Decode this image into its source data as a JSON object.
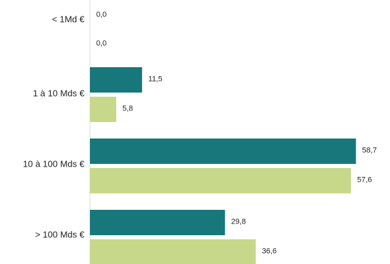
{
  "chart_data": {
    "type": "bar",
    "orientation": "horizontal",
    "title": "",
    "xlabel": "",
    "ylabel": "",
    "categories": [
      "< 1Md €",
      "1 à 10 Mds €",
      "10 à 100 Mds €",
      "> 100 Mds €"
    ],
    "series": [
      {
        "color": "#17777a",
        "values": [
          0.0,
          11.5,
          58.7,
          29.8
        ],
        "labels": [
          "0,0",
          "11,5",
          "58,7",
          "29,8"
        ]
      },
      {
        "color": "#c8d88a",
        "values": [
          0.0,
          5.8,
          57.6,
          36.6
        ],
        "labels": [
          "0,0",
          "5,8",
          "57,6",
          "36,6"
        ]
      }
    ],
    "xlim": [
      0,
      60
    ],
    "grid": false,
    "legend": "none"
  }
}
